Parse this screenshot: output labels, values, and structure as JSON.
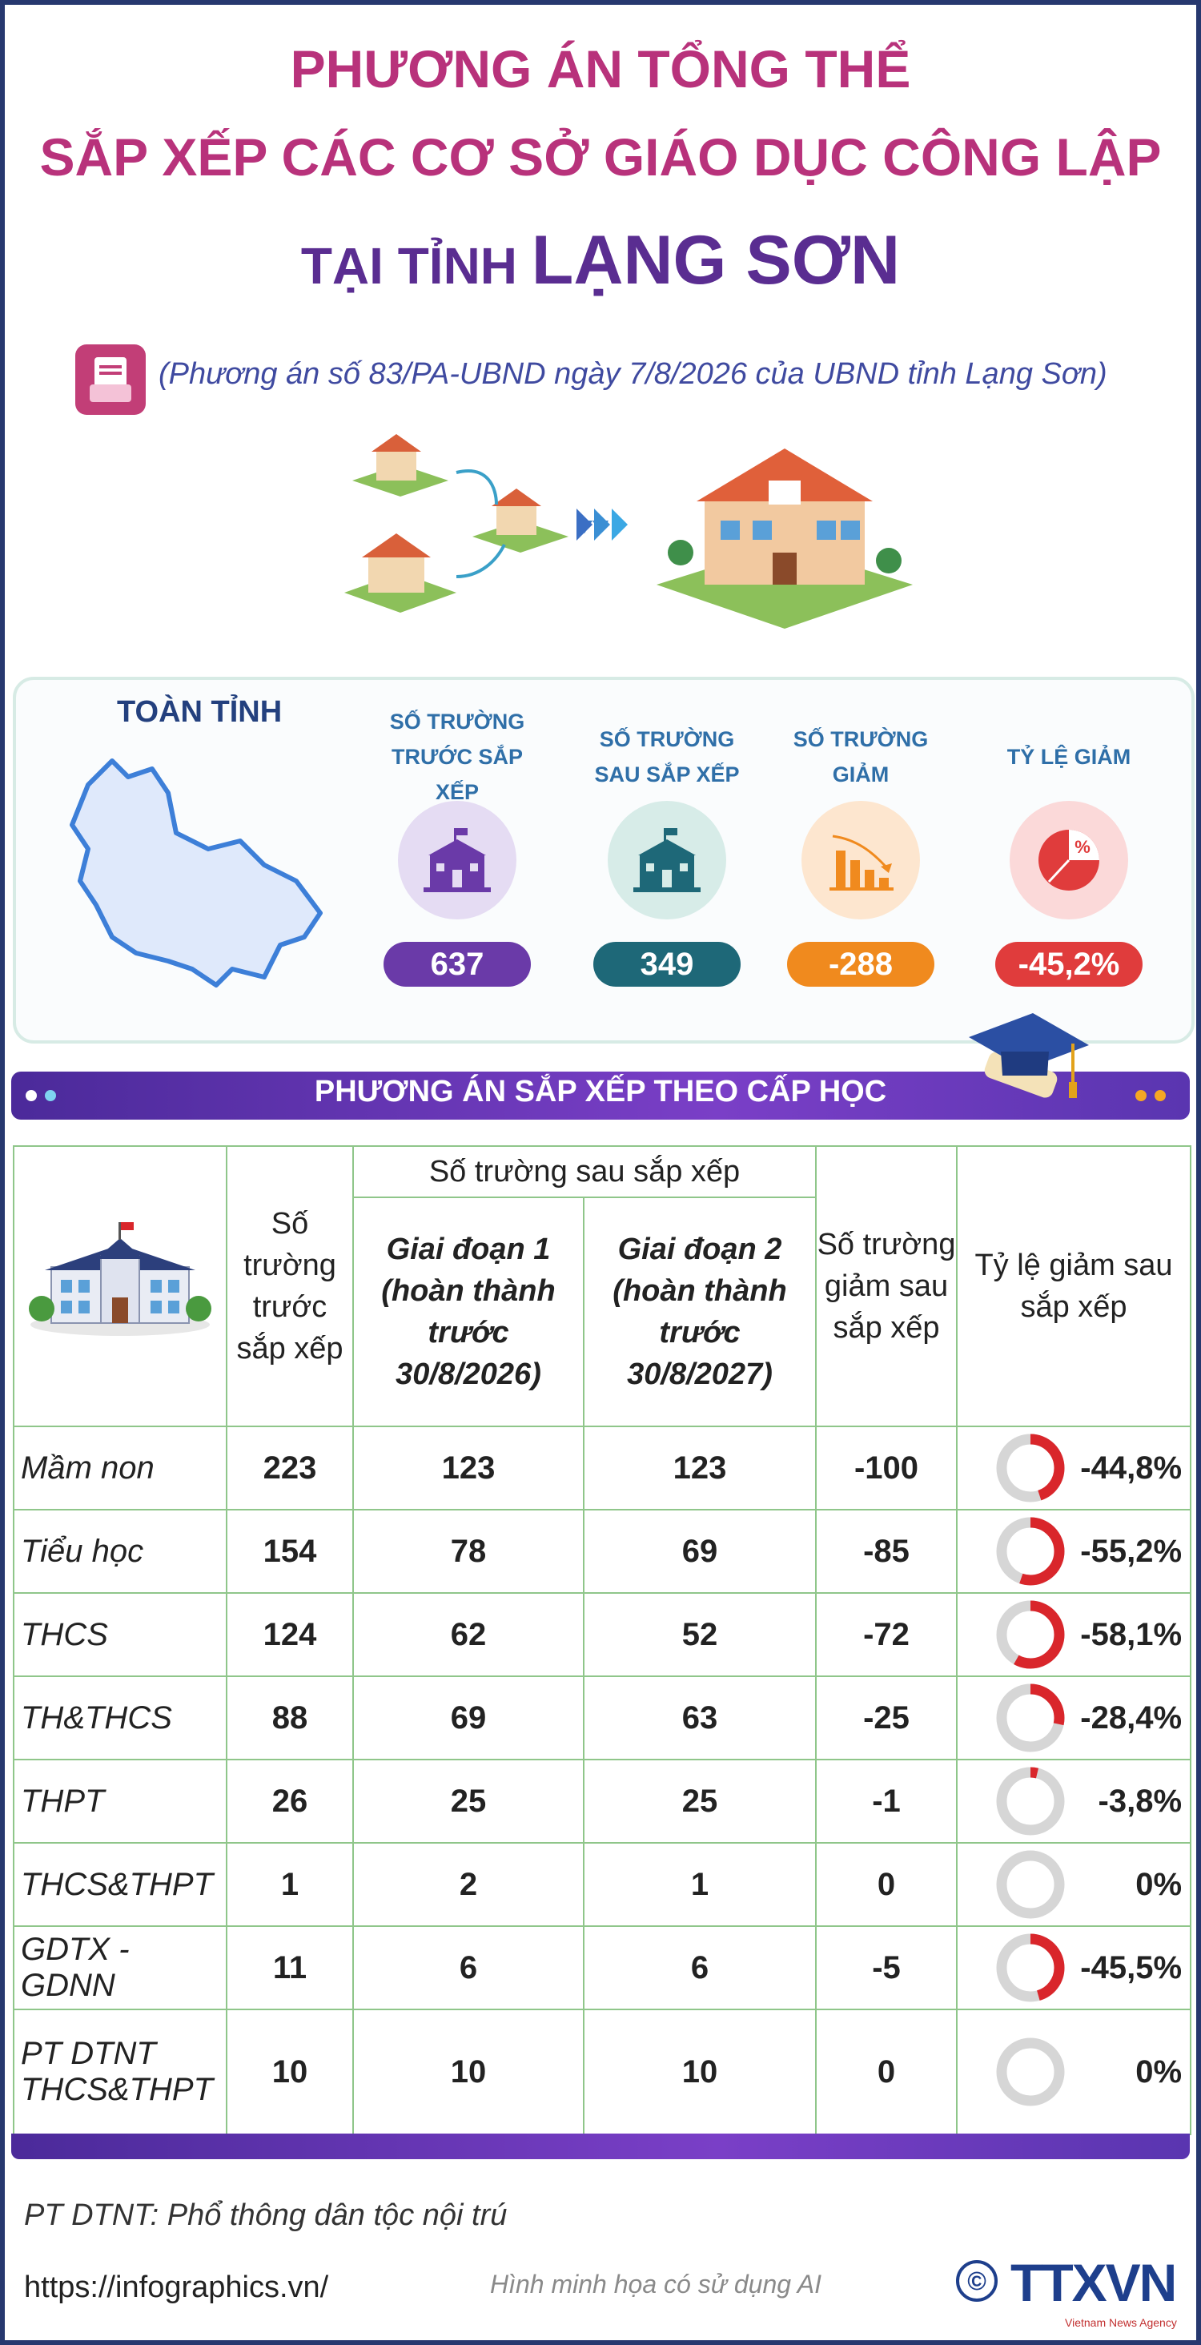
{
  "title": {
    "line1": "PHƯƠNG ÁN TỔNG THỂ",
    "line2": "SẮP XẾP CÁC CƠ SỞ GIÁO DỤC CÔNG LẬP",
    "line3_prefix": "TẠI TỈNH ",
    "line3_place": "LẠNG SƠN"
  },
  "source": "(Phương án số 83/PA-UBND ngày 7/8/2026 của UBND tỉnh Lạng Sơn)",
  "summary": {
    "heading": "TOÀN TỈNH",
    "stats": [
      {
        "label": "SỐ TRƯỜNG TRƯỚC SẮP XẾP",
        "value": "637",
        "icon": "school-icon",
        "color": "#6a3aa8",
        "bg": "#e5dcf3"
      },
      {
        "label": "SỐ TRƯỜNG SAU SẮP XẾP",
        "value": "349",
        "icon": "school-icon",
        "color": "#1e6878",
        "bg": "#d7ece8"
      },
      {
        "label": "SỐ TRƯỜNG GIẢM",
        "value": "-288",
        "icon": "decreasing-bar-chart-icon",
        "color": "#f08a1e",
        "bg": "#fde6cf"
      },
      {
        "label": "TỶ LỆ GIẢM",
        "value": "-45,2%",
        "icon": "percent-pie-icon",
        "color": "#e03c3c",
        "bg": "#fbd9d9"
      }
    ]
  },
  "section_title": "PHƯƠNG ÁN SẮP XẾP THEO CẤP HỌC",
  "table": {
    "headers": {
      "before": "Số trường trước sắp xếp",
      "after_group": "Số trường sau sắp xếp",
      "phase1": "Giai đoạn 1 (hoàn thành trước 30/8/2026)",
      "phase2": "Giai đoạn 2 (hoàn thành trước 30/8/2027)",
      "reduced": "Số trường giảm sau sắp xếp",
      "rate": "Tỷ lệ giảm sau sắp xếp"
    },
    "rows": [
      {
        "level": "Mầm non",
        "before": "223",
        "phase1": "123",
        "phase2": "123",
        "reduced": "-100",
        "rate": "-44,8%",
        "fraction": 0.448
      },
      {
        "level": "Tiểu học",
        "before": "154",
        "phase1": "78",
        "phase2": "69",
        "reduced": "-85",
        "rate": "-55,2%",
        "fraction": 0.552
      },
      {
        "level": "THCS",
        "before": "124",
        "phase1": "62",
        "phase2": "52",
        "reduced": "-72",
        "rate": "-58,1%",
        "fraction": 0.581
      },
      {
        "level": "TH&THCS",
        "before": "88",
        "phase1": "69",
        "phase2": "63",
        "reduced": "-25",
        "rate": "-28,4%",
        "fraction": 0.284
      },
      {
        "level": "THPT",
        "before": "26",
        "phase1": "25",
        "phase2": "25",
        "reduced": "-1",
        "rate": "-3,8%",
        "fraction": 0.038
      },
      {
        "level": "THCS&THPT",
        "before": "1",
        "phase1": "2",
        "phase2": "1",
        "reduced": "0",
        "rate": "0%",
        "fraction": 0
      },
      {
        "level": "GDTX - GDNN",
        "before": "11",
        "phase1": "6",
        "phase2": "6",
        "reduced": "-5",
        "rate": "-45,5%",
        "fraction": 0.455
      },
      {
        "level": "PT DTNT THCS&THPT",
        "before": "10",
        "phase1": "10",
        "phase2": "10",
        "reduced": "0",
        "rate": "0%",
        "fraction": 0
      }
    ]
  },
  "footnote": "PT DTNT: Phổ thông dân tộc nội trú",
  "url": "https://infographics.vn/",
  "ai_note": "Hình minh họa có sử dụng AI",
  "logo": "TTXVN",
  "logo_sub": "Vietnam News Agency",
  "copyright_symbol": "©",
  "colors": {
    "pink": "#b8327b",
    "purple": "#5a2d91",
    "grid": "#8fc68a",
    "donut_red": "#d9262b",
    "donut_grey": "#d6d6d6"
  }
}
